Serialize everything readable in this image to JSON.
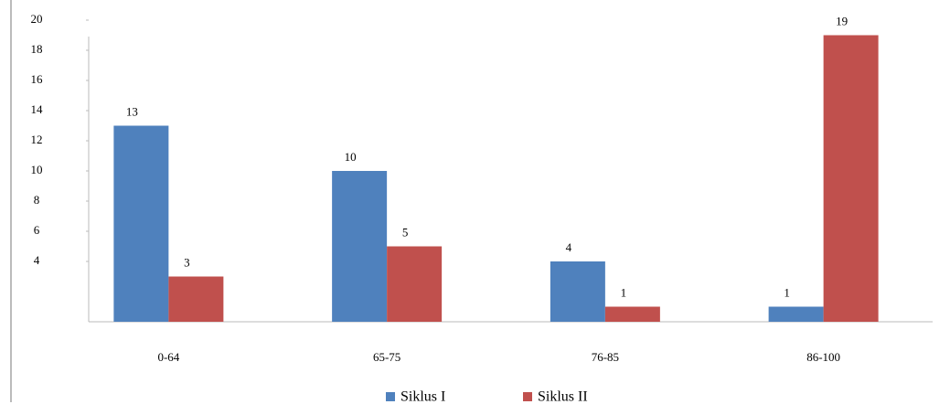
{
  "chart_data": {
    "type": "bar",
    "categories": [
      "0-64",
      "65-75",
      "76-85",
      "86-100"
    ],
    "series": [
      {
        "name": "Siklus I",
        "color": "#4f81bd",
        "values": [
          13,
          10,
          4,
          1
        ]
      },
      {
        "name": "Siklus II",
        "color": "#c0504d",
        "values": [
          3,
          5,
          1,
          19
        ]
      }
    ],
    "ylim": [
      0,
      20
    ],
    "yticks": [
      4,
      6,
      8,
      10,
      12,
      14,
      16,
      18,
      20
    ],
    "legend": "bottom"
  }
}
